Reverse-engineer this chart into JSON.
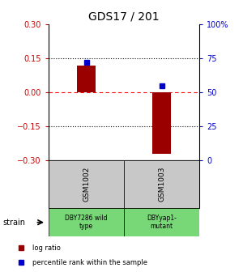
{
  "title": "GDS17 / 201",
  "samples": [
    "GSM1002",
    "GSM1003"
  ],
  "log_ratios": [
    0.12,
    -0.27
  ],
  "percentile_ranks": [
    72,
    55
  ],
  "strain_labels": [
    "DBY7286 wild\ntype",
    "DBYyap1-\nmutant"
  ],
  "ylim_left": [
    -0.3,
    0.3
  ],
  "ylim_right": [
    0,
    100
  ],
  "yticks_left": [
    -0.3,
    -0.15,
    0,
    0.15,
    0.3
  ],
  "yticks_right": [
    0,
    25,
    50,
    75,
    100
  ],
  "bar_color": "#9B0000",
  "dot_color": "#0000CD",
  "sample_box_color": "#C8C8C8",
  "strain_box_color": "#78D878",
  "left_tick_color": "#CC0000",
  "right_tick_color": "#0000CC",
  "bar_width": 0.25,
  "legend_labels": [
    "log ratio",
    "percentile rank within the sample"
  ],
  "legend_colors": [
    "#9B0000",
    "#0000CD"
  ]
}
